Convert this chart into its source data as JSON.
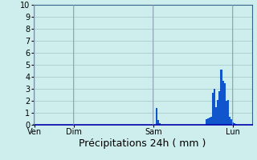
{
  "xlabel": "Précipitations 24h ( mm )",
  "ylim": [
    0,
    10
  ],
  "yticks": [
    0,
    1,
    2,
    3,
    4,
    5,
    6,
    7,
    8,
    9,
    10
  ],
  "background_color": "#ceeeed",
  "grid_color": "#aacccc",
  "bar_color": "#1155cc",
  "n_bars": 144,
  "bars": [
    0,
    0,
    0,
    0,
    0,
    0,
    0,
    0,
    0,
    0,
    0,
    0,
    0,
    0,
    0,
    0,
    0,
    0,
    0,
    0,
    0,
    0,
    0,
    0,
    0,
    0,
    0,
    0,
    0,
    0,
    0,
    0,
    0,
    0,
    0,
    0,
    0,
    0,
    0,
    0,
    0,
    0,
    0,
    0,
    0,
    0,
    0,
    0,
    0,
    0,
    0,
    0,
    0,
    0,
    0,
    0,
    0,
    0,
    0,
    0,
    0,
    0,
    0,
    0,
    0,
    0,
    0,
    0,
    0,
    0,
    0,
    0,
    0,
    0,
    1.4,
    0.4,
    0.15,
    0,
    0,
    0,
    0,
    0,
    0,
    0,
    0,
    0,
    0,
    0,
    0,
    0,
    0,
    0,
    0,
    0,
    0,
    0,
    0,
    0,
    0,
    0,
    0,
    0,
    0,
    0,
    0.5,
    0.55,
    0.6,
    0.7,
    2.7,
    3.0,
    1.5,
    2.1,
    2.8,
    4.6,
    3.7,
    3.5,
    2.0,
    2.1,
    0.7,
    0.5,
    0.2,
    0.15,
    0.1,
    0,
    0,
    0,
    0,
    0,
    0,
    0,
    0,
    0
  ],
  "vline_positions": [
    0,
    24,
    72,
    120
  ],
  "x_label_info": [
    [
      0,
      "Ven"
    ],
    [
      24,
      "Dim"
    ],
    [
      72,
      "Sam"
    ],
    [
      120,
      "Lun"
    ]
  ],
  "vline_color": "#8899aa",
  "xlabel_fontsize": 9,
  "tick_fontsize": 7
}
